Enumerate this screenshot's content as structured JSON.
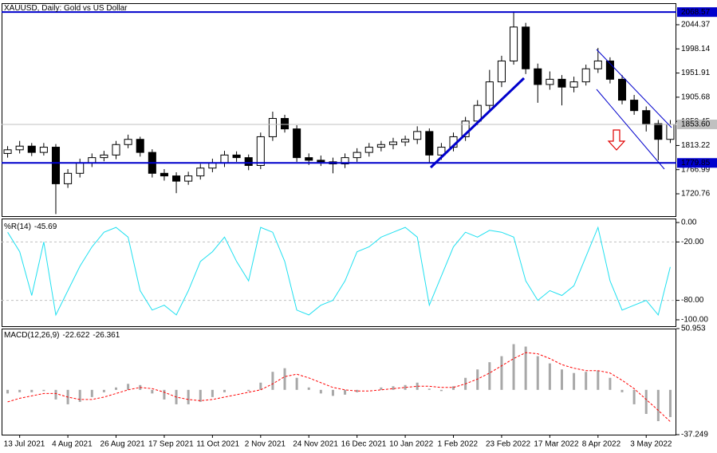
{
  "chart_data": [
    {
      "type": "candlestick",
      "title": "XAUUSD, Daily:  Gold vs US Dollar",
      "open": [
        1798,
        1805,
        1812,
        1800,
        1810,
        1740,
        1760,
        1780,
        1790,
        1795,
        1815,
        1825,
        1800,
        1760,
        1755,
        1745,
        1755,
        1770,
        1780,
        1795,
        1790,
        1775,
        1830,
        1865,
        1845,
        1790,
        1785,
        1782,
        1778,
        1790,
        1800,
        1810,
        1815,
        1820,
        1825,
        1840,
        1795,
        1810,
        1830,
        1860,
        1890,
        1935,
        1975,
        2040,
        1960,
        1930,
        1940,
        1925,
        1935,
        1960,
        1975,
        1940,
        1900,
        1880,
        1855,
        1825
      ],
      "high": [
        1812,
        1822,
        1818,
        1818,
        1816,
        1768,
        1788,
        1798,
        1803,
        1822,
        1834,
        1830,
        1806,
        1768,
        1762,
        1763,
        1778,
        1788,
        1803,
        1802,
        1796,
        1838,
        1878,
        1872,
        1852,
        1798,
        1794,
        1790,
        1798,
        1808,
        1818,
        1822,
        1828,
        1832,
        1850,
        1846,
        1818,
        1838,
        1868,
        1900,
        1958,
        1985,
        2070,
        2048,
        1970,
        1955,
        1948,
        1945,
        1968,
        2000,
        1982,
        1948,
        1910,
        1888,
        1862,
        1862
      ],
      "low": [
        1790,
        1798,
        1793,
        1794,
        1682,
        1732,
        1752,
        1772,
        1783,
        1787,
        1808,
        1792,
        1752,
        1746,
        1722,
        1738,
        1748,
        1762,
        1772,
        1782,
        1766,
        1768,
        1822,
        1838,
        1782,
        1776,
        1774,
        1760,
        1770,
        1782,
        1792,
        1802,
        1806,
        1812,
        1816,
        1780,
        1786,
        1802,
        1822,
        1852,
        1882,
        1925,
        1968,
        1950,
        1895,
        1920,
        1890,
        1915,
        1928,
        1952,
        1932,
        1892,
        1872,
        1840,
        1785,
        1818
      ],
      "close": [
        1805,
        1812,
        1800,
        1810,
        1740,
        1760,
        1780,
        1790,
        1795,
        1815,
        1825,
        1800,
        1760,
        1755,
        1745,
        1755,
        1770,
        1780,
        1795,
        1790,
        1775,
        1830,
        1865,
        1845,
        1790,
        1785,
        1782,
        1778,
        1790,
        1800,
        1810,
        1815,
        1820,
        1825,
        1840,
        1795,
        1810,
        1830,
        1860,
        1890,
        1935,
        1975,
        2040,
        1960,
        1930,
        1940,
        1925,
        1935,
        1960,
        1975,
        1940,
        1900,
        1880,
        1855,
        1825,
        1853.6
      ],
      "up_color": "#ffffff",
      "down_color": "#000000",
      "xlim": [
        -0.5,
        55.5
      ],
      "xticks": [
        {
          "value": 1,
          "label": "13 Jul 2021"
        },
        {
          "value": 5,
          "label": "4 Aug 2021"
        },
        {
          "value": 9,
          "label": "26 Aug 2021"
        },
        {
          "value": 13,
          "label": "17 Sep 2021"
        },
        {
          "value": 17,
          "label": "11 Oct 2021"
        },
        {
          "value": 21,
          "label": "2 Nov 2021"
        },
        {
          "value": 25,
          "label": "24 Nov 2021"
        },
        {
          "value": 29,
          "label": "16 Dec 2021"
        },
        {
          "value": 33,
          "label": "10 Jan 2022"
        },
        {
          "value": 37,
          "label": "1 Feb 2022"
        },
        {
          "value": 41,
          "label": "23 Feb 2022"
        },
        {
          "value": 45,
          "label": "17 Mar 2022"
        },
        {
          "value": 49,
          "label": "8 Apr 2022"
        },
        {
          "value": 53,
          "label": "3 May 2022"
        }
      ],
      "ylim": [
        1676.5,
        2085.6
      ],
      "yticks": [
        1720.76,
        1766.99,
        1813.22,
        1859.45,
        1905.68,
        1951.91,
        1998.14,
        2044.37
      ],
      "hlines": [
        {
          "value": 2068.57,
          "color": "#0000cc"
        },
        {
          "value": 1779.85,
          "color": "#0000cc"
        }
      ],
      "last_price": {
        "value": 1853.6,
        "label": "1853.60"
      },
      "last_price_color": "#c0c0c0"
    },
    {
      "type": "line",
      "title": "%R(14)",
      "values": [
        -10,
        -30,
        -75,
        -20,
        -95,
        -70,
        -45,
        -25,
        -10,
        -5,
        -15,
        -70,
        -90,
        -85,
        -95,
        -70,
        -40,
        -30,
        -15,
        -40,
        -60,
        -5,
        -10,
        -40,
        -90,
        -95,
        -85,
        -80,
        -60,
        -30,
        -25,
        -15,
        -10,
        -5,
        -15,
        -85,
        -55,
        -25,
        -10,
        -15,
        -8,
        -10,
        -15,
        -60,
        -80,
        -70,
        -75,
        -65,
        -35,
        -5,
        -60,
        -90,
        -85,
        -80,
        -95,
        -45.69
      ],
      "color": "#20e0f0",
      "ylim": [
        -107.4,
        4.1
      ],
      "yticks": [
        {
          "value": 0,
          "label": "0.00"
        },
        {
          "value": -20,
          "label": "-20.00"
        },
        {
          "value": -80,
          "label": "-80.00"
        },
        {
          "value": -100,
          "label": "-100.00"
        }
      ],
      "levels": [
        -20,
        -80
      ]
    },
    {
      "type": "macd",
      "title": "MACD(12,26,9)",
      "macd_values": [
        -3,
        -2,
        -2,
        -1,
        -8,
        -12,
        -10,
        -6,
        -2,
        2,
        5,
        4,
        -3,
        -8,
        -12,
        -12,
        -10,
        -6,
        -2,
        0,
        -1,
        6,
        15,
        18,
        10,
        2,
        -3,
        -5,
        -4,
        -2,
        0,
        2,
        3,
        4,
        6,
        1,
        -1,
        3,
        10,
        17,
        23,
        28,
        38,
        36,
        28,
        22,
        17,
        14,
        15,
        16,
        10,
        -2,
        -12,
        -20,
        -26,
        -22.622
      ],
      "signal_values": [
        -10,
        -7,
        -5,
        -3,
        -3,
        -6,
        -8,
        -8,
        -6,
        -3,
        0,
        2,
        1,
        -2,
        -6,
        -8,
        -9,
        -8,
        -6,
        -4,
        -2,
        0,
        5,
        11,
        13,
        10,
        6,
        2,
        0,
        -1,
        -1,
        0,
        1,
        2,
        3,
        3,
        2,
        2,
        5,
        9,
        14,
        20,
        26,
        31,
        30,
        26,
        21,
        18,
        16,
        16,
        14,
        8,
        1,
        -8,
        -17,
        -26.361
      ],
      "macd_color": "#a8a8a8",
      "signal_color": "#ff0000",
      "ylim": [
        -37.249,
        50.953
      ],
      "yticks": [
        50.953,
        -37.249
      ]
    }
  ]
}
